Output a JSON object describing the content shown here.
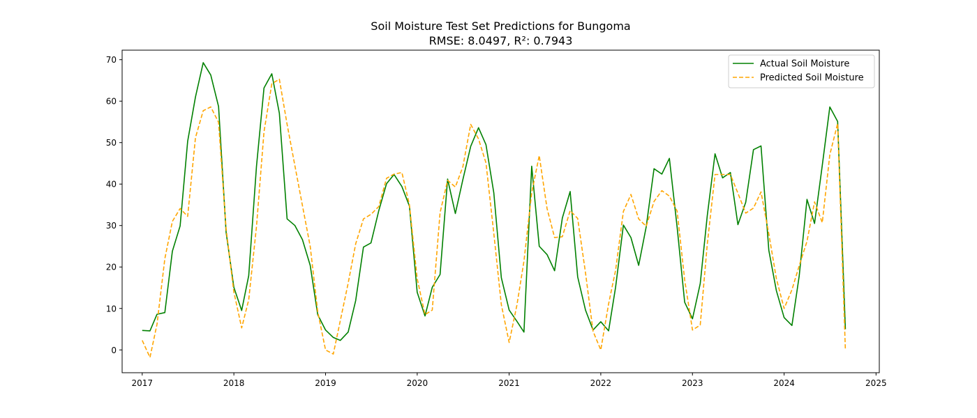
{
  "chart_data": {
    "type": "line",
    "title": "Soil Moisture Test Set Predictions for Bungoma",
    "subtitle": "RMSE: 8.0497, R²: 0.7943",
    "xlabel": "",
    "ylabel": "",
    "xlim": [
      "2016-10-13",
      "2025-01-14"
    ],
    "ylim": [
      -5.5,
      72.3
    ],
    "x_ticks": [
      "2017",
      "2018",
      "2019",
      "2020",
      "2021",
      "2022",
      "2023",
      "2024",
      "2025"
    ],
    "y_ticks": [
      0,
      10,
      20,
      30,
      40,
      50,
      60,
      70
    ],
    "grid": false,
    "legend_position": "top-right",
    "x": [
      "2017-01-01",
      "2017-02-01",
      "2017-03-01",
      "2017-04-01",
      "2017-05-01",
      "2017-06-01",
      "2017-07-01",
      "2017-08-01",
      "2017-09-01",
      "2017-10-01",
      "2017-11-01",
      "2017-12-01",
      "2018-01-01",
      "2018-02-01",
      "2018-03-01",
      "2018-04-01",
      "2018-05-01",
      "2018-06-01",
      "2018-07-01",
      "2018-08-01",
      "2018-09-01",
      "2018-10-01",
      "2018-11-01",
      "2018-12-01",
      "2019-01-01",
      "2019-02-01",
      "2019-03-01",
      "2019-04-01",
      "2019-05-01",
      "2019-06-01",
      "2019-07-01",
      "2019-08-01",
      "2019-09-01",
      "2019-10-01",
      "2019-11-01",
      "2019-12-01",
      "2020-01-01",
      "2020-02-01",
      "2020-03-01",
      "2020-04-01",
      "2020-05-01",
      "2020-06-01",
      "2020-07-01",
      "2020-08-01",
      "2020-09-01",
      "2020-10-01",
      "2020-11-01",
      "2020-12-01",
      "2021-01-01",
      "2021-02-01",
      "2021-03-01",
      "2021-04-01",
      "2021-05-01",
      "2021-06-01",
      "2021-07-01",
      "2021-08-01",
      "2021-09-01",
      "2021-10-01",
      "2021-11-01",
      "2021-12-01",
      "2022-01-01",
      "2022-02-01",
      "2022-03-01",
      "2022-04-01",
      "2022-05-01",
      "2022-06-01",
      "2022-07-01",
      "2022-08-01",
      "2022-09-01",
      "2022-10-01",
      "2022-11-01",
      "2022-12-01",
      "2023-01-01",
      "2023-02-01",
      "2023-03-01",
      "2023-04-01",
      "2023-05-01",
      "2023-06-01",
      "2023-07-01",
      "2023-08-01",
      "2023-09-01",
      "2023-10-01",
      "2023-11-01",
      "2023-12-01",
      "2024-01-01",
      "2024-02-01",
      "2024-03-01",
      "2024-04-01",
      "2024-05-01",
      "2024-06-01",
      "2024-07-01",
      "2024-08-01",
      "2024-09-01"
    ],
    "series": [
      {
        "name": "Actual Soil Moisture",
        "color": "#008000",
        "style": "solid",
        "values": [
          4.7,
          4.6,
          8.6,
          9.0,
          23.8,
          29.9,
          50.3,
          61.0,
          69.3,
          66.3,
          58.7,
          28.4,
          15.1,
          9.5,
          17.9,
          44.2,
          63.2,
          66.6,
          57.1,
          31.6,
          30.0,
          26.6,
          20.4,
          8.5,
          4.8,
          3.0,
          2.3,
          4.3,
          11.9,
          24.8,
          25.8,
          33.6,
          40.1,
          42.3,
          39.4,
          34.7,
          13.9,
          8.2,
          15.1,
          18.2,
          41.2,
          32.9,
          41.1,
          49.1,
          53.6,
          49.5,
          37.9,
          17.4,
          9.6,
          6.9,
          4.3,
          44.3,
          25.0,
          23.0,
          19.1,
          31.8,
          38.2,
          17.6,
          9.6,
          4.8,
          6.8,
          4.6,
          15.1,
          30.1,
          27.1,
          20.4,
          29.7,
          43.7,
          42.4,
          46.2,
          29.6,
          11.5,
          7.5,
          16.0,
          32.4,
          47.3,
          41.5,
          42.8,
          30.2,
          35.6,
          48.3,
          49.2,
          24.0,
          14.3,
          7.8,
          5.9,
          17.8,
          36.3,
          30.5,
          44.5,
          58.6,
          55.1,
          5.0
        ]
      },
      {
        "name": "Predicted Soil Moisture",
        "color": "#ffa500",
        "style": "dashed",
        "values": [
          2.3,
          -1.8,
          6.2,
          22.0,
          31.0,
          34.1,
          32.2,
          51.2,
          57.7,
          58.6,
          54.9,
          29.2,
          14.0,
          5.3,
          12.1,
          29.7,
          52.6,
          64.2,
          65.3,
          54.4,
          44.4,
          34.8,
          25.0,
          9.2,
          0.0,
          -1.0,
          7.1,
          16.1,
          25.6,
          31.6,
          32.7,
          34.6,
          41.4,
          42.4,
          42.8,
          35.0,
          17.2,
          8.5,
          9.6,
          33.1,
          40.9,
          39.3,
          44.2,
          54.4,
          50.9,
          45.1,
          28.1,
          10.9,
          1.8,
          10.8,
          21.4,
          37.9,
          46.9,
          34.1,
          27.1,
          27.3,
          33.6,
          31.7,
          18.6,
          4.5,
          0.0,
          11.1,
          19.2,
          33.4,
          37.5,
          31.6,
          29.8,
          35.8,
          38.4,
          37.1,
          33.5,
          16.9,
          4.8,
          6.0,
          25.5,
          42.3,
          42.3,
          42.3,
          37.8,
          33.0,
          34.2,
          38.1,
          28.0,
          17.2,
          10.0,
          14.5,
          20.3,
          26.2,
          35.7,
          30.7,
          47.1,
          54.6,
          0.0
        ]
      }
    ]
  }
}
